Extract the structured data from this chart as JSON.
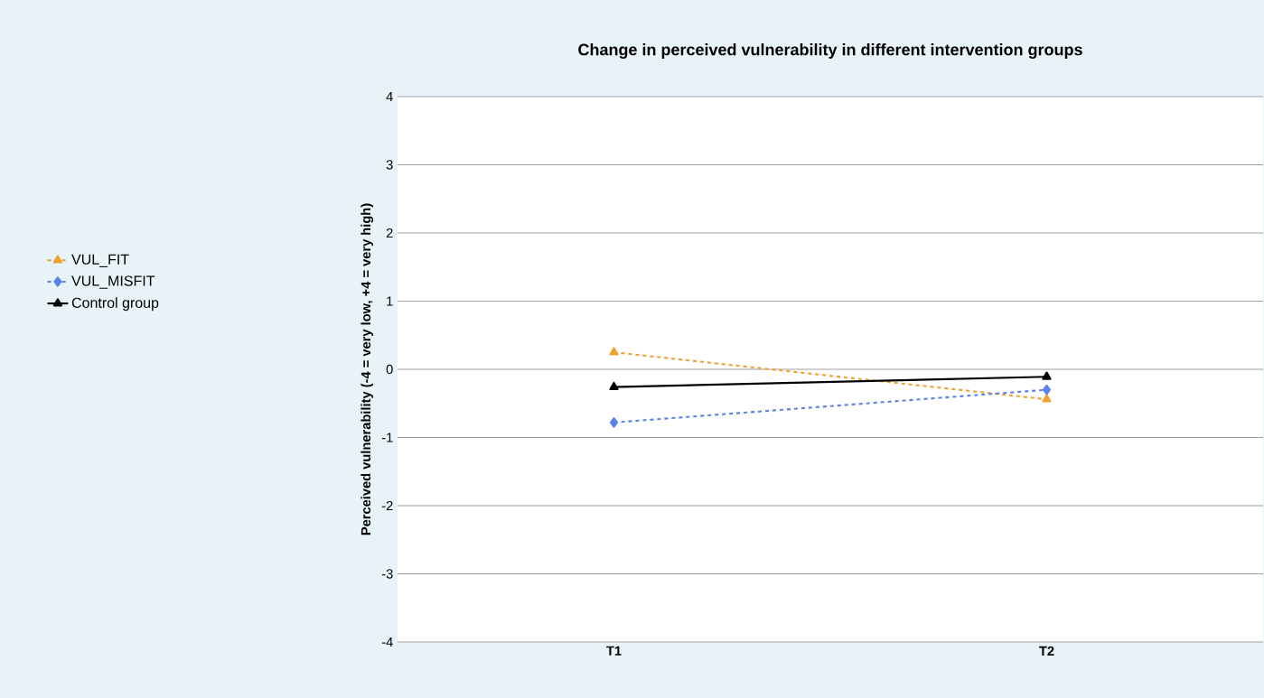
{
  "chart_data": {
    "type": "line",
    "title": "Change in perceived vulnerability in different intervention groups",
    "ylabel": "Perceived vulnerability (-4 = very low, +4 = very high)",
    "categories": [
      "T1",
      "T2"
    ],
    "series": [
      {
        "name": "VUL_FIT",
        "color": "#f0a030",
        "values": [
          0.25,
          -0.44
        ],
        "marker": "triangle",
        "line_style": "dashed"
      },
      {
        "name": "VUL_MISFIT",
        "color": "#5a82ea",
        "values": [
          -0.78,
          -0.3
        ],
        "marker": "diamond",
        "line_style": "dashed"
      },
      {
        "name": "Control group",
        "color": "#000000",
        "values": [
          -0.26,
          -0.11
        ],
        "marker": "triangle",
        "line_style": "solid"
      }
    ],
    "ylim": [
      -4,
      4
    ],
    "yticks": [
      -4,
      -3,
      -2,
      -1,
      0,
      1,
      2,
      3,
      4
    ],
    "grid": "y",
    "legend": "left"
  }
}
